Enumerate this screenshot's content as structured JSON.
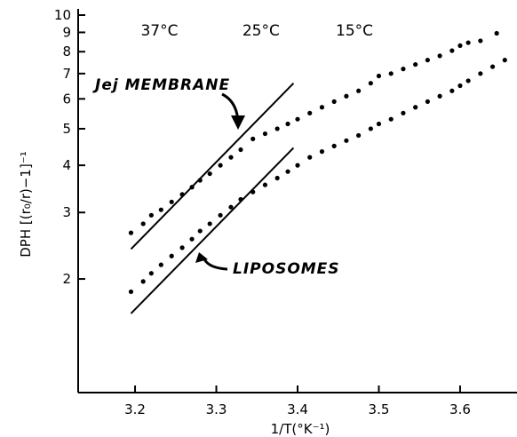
{
  "chart_data": {
    "type": "scatter",
    "title": "",
    "xlabel": "1/T(°K⁻¹)",
    "ylabel": "DPH  [(r₀/r)−1]⁻¹",
    "xlim": [
      3.13,
      3.67
    ],
    "ylim": [
      1,
      10
    ],
    "y_scale": "log",
    "x_ticks": [
      3.2,
      3.3,
      3.4,
      3.5,
      3.6
    ],
    "x_tick_labels": [
      "3.2",
      "3.3",
      "3.4",
      "3.5",
      "3.6"
    ],
    "y_ticks": [
      2,
      3,
      4,
      5,
      6,
      7,
      8,
      9,
      10
    ],
    "y_tick_labels": [
      "2",
      "3",
      "4",
      "5",
      "6",
      "7",
      "8",
      "9",
      "10"
    ],
    "temperature_labels": [
      {
        "text": "37°C",
        "x": 3.23
      },
      {
        "text": "25°C",
        "x": 3.355
      },
      {
        "text": "15°C",
        "x": 3.47
      }
    ],
    "series": [
      {
        "name": "Jej MEMBRANE",
        "x": [
          3.195,
          3.21,
          3.22,
          3.232,
          3.245,
          3.258,
          3.27,
          3.28,
          3.292,
          3.305,
          3.318,
          3.33,
          3.345,
          3.36,
          3.375,
          3.388,
          3.4,
          3.415,
          3.43,
          3.445,
          3.46,
          3.475,
          3.49,
          3.5,
          3.515,
          3.53,
          3.545,
          3.56,
          3.575,
          3.59,
          3.6,
          3.61,
          3.625,
          3.645
        ],
        "y": [
          2.65,
          2.8,
          2.95,
          3.05,
          3.2,
          3.35,
          3.5,
          3.65,
          3.8,
          4.0,
          4.2,
          4.4,
          4.7,
          4.85,
          5.0,
          5.15,
          5.3,
          5.5,
          5.7,
          5.9,
          6.1,
          6.3,
          6.6,
          6.9,
          7.0,
          7.2,
          7.4,
          7.6,
          7.8,
          8.05,
          8.3,
          8.45,
          8.55,
          8.95
        ]
      },
      {
        "name": "LIPOSOMES",
        "x": [
          3.195,
          3.21,
          3.22,
          3.232,
          3.245,
          3.258,
          3.27,
          3.28,
          3.292,
          3.305,
          3.318,
          3.33,
          3.345,
          3.36,
          3.375,
          3.388,
          3.4,
          3.415,
          3.43,
          3.445,
          3.46,
          3.475,
          3.49,
          3.5,
          3.515,
          3.53,
          3.545,
          3.56,
          3.575,
          3.59,
          3.6,
          3.61,
          3.625,
          3.64,
          3.655
        ],
        "y": [
          1.85,
          1.97,
          2.07,
          2.18,
          2.3,
          2.42,
          2.55,
          2.68,
          2.8,
          2.95,
          3.1,
          3.25,
          3.4,
          3.55,
          3.7,
          3.85,
          4.0,
          4.2,
          4.35,
          4.5,
          4.65,
          4.8,
          5.0,
          5.15,
          5.3,
          5.5,
          5.7,
          5.9,
          6.1,
          6.3,
          6.5,
          6.7,
          7.0,
          7.3,
          7.6
        ]
      }
    ],
    "fit_lines": [
      {
        "x": [
          3.195,
          3.395
        ],
        "y": [
          2.4,
          6.6
        ]
      },
      {
        "x": [
          3.195,
          3.395
        ],
        "y": [
          1.62,
          4.45
        ]
      }
    ],
    "grid": false,
    "legend": "none"
  }
}
